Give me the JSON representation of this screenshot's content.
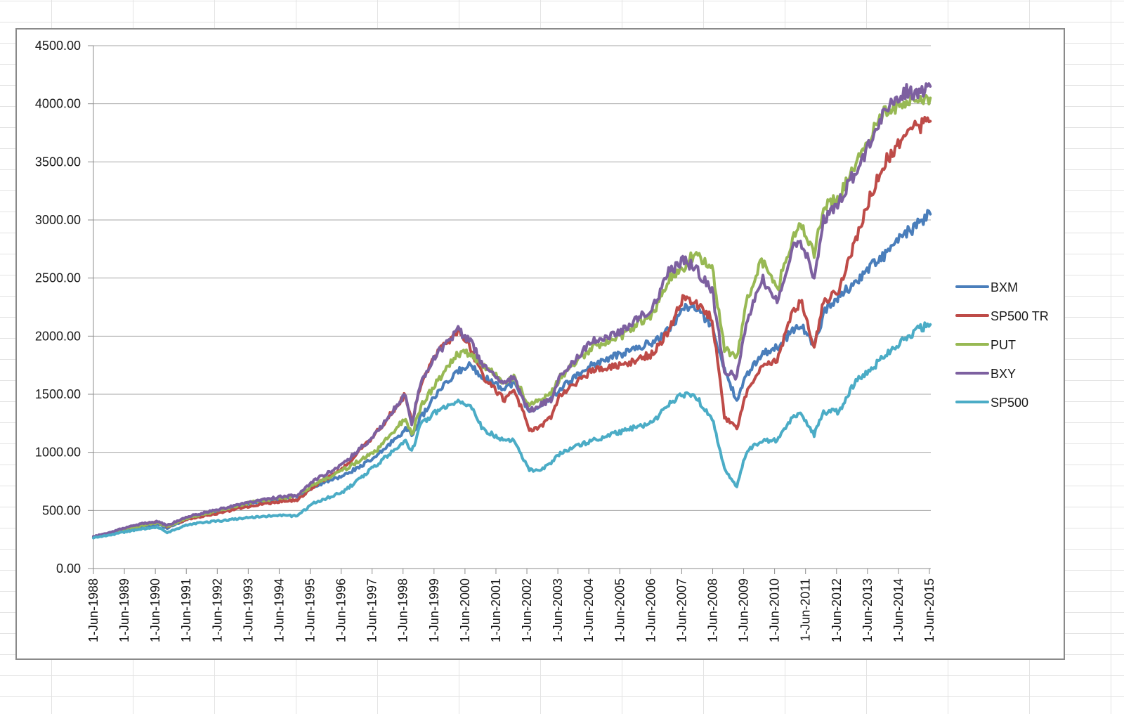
{
  "chart_data": {
    "type": "line",
    "title": "",
    "xlabel": "",
    "ylabel": "",
    "ylim": [
      0,
      4500
    ],
    "y_ticks": [
      "0.00",
      "500.00",
      "1000.00",
      "1500.00",
      "2000.00",
      "2500.00",
      "3000.00",
      "3500.00",
      "4000.00",
      "4500.00"
    ],
    "y_tick_values": [
      0,
      500,
      1000,
      1500,
      2000,
      2500,
      3000,
      3500,
      4000,
      4500
    ],
    "x_tick_labels": [
      "1-Jun-1988",
      "1-Jun-1989",
      "1-Jun-1990",
      "1-Jun-1991",
      "1-Jun-1992",
      "1-Jun-1993",
      "1-Jun-1994",
      "1-Jun-1995",
      "1-Jun-1996",
      "1-Jun-1997",
      "1-Jun-1998",
      "1-Jun-1999",
      "1-Jun-2000",
      "1-Jun-2001",
      "1-Jun-2002",
      "1-Jun-2003",
      "1-Jun-2004",
      "1-Jun-2005",
      "1-Jun-2006",
      "1-Jun-2007",
      "1-Jun-2008",
      "1-Jun-2009",
      "1-Jun-2010",
      "1-Jun-2011",
      "1-Jun-2012",
      "1-Jun-2013",
      "1-Jun-2014",
      "1-Jun-2015"
    ],
    "grid": {
      "horizontal": true,
      "vertical": false
    },
    "legend_position": "right",
    "x": [
      1988.42,
      1989.0,
      1989.5,
      1990.0,
      1990.5,
      1990.8,
      1991.5,
      1992.5,
      1993.5,
      1994.5,
      1995.0,
      1995.5,
      1996.5,
      1997.5,
      1998.5,
      1998.7,
      1999.0,
      1999.5,
      2000.2,
      2000.6,
      2001.0,
      2001.7,
      2002.0,
      2002.5,
      2002.8,
      2003.2,
      2003.5,
      2004.5,
      2005.5,
      2006.5,
      2007.0,
      2007.5,
      2007.8,
      2008.4,
      2008.8,
      2009.2,
      2009.5,
      2010.0,
      2010.5,
      2011.0,
      2011.3,
      2011.7,
      2012.0,
      2012.5,
      2013.0,
      2013.5,
      2014.0,
      2014.5,
      2015.0,
      2015.45
    ],
    "series": [
      {
        "name": "BXM",
        "color": "#4a7ebb",
        "values": [
          270,
          300,
          330,
          360,
          380,
          350,
          430,
          500,
          560,
          600,
          620,
          700,
          800,
          950,
          1200,
          1150,
          1300,
          1500,
          1700,
          1750,
          1650,
          1550,
          1600,
          1350,
          1400,
          1450,
          1550,
          1750,
          1850,
          1950,
          2050,
          2250,
          2250,
          2100,
          1700,
          1450,
          1650,
          1850,
          1900,
          2050,
          2100,
          1900,
          2200,
          2350,
          2450,
          2600,
          2700,
          2850,
          2950,
          3050
        ]
      },
      {
        "name": "SP500 TR",
        "color": "#be4b48",
        "values": [
          270,
          310,
          350,
          380,
          400,
          360,
          430,
          480,
          540,
          580,
          590,
          700,
          870,
          1150,
          1500,
          1250,
          1600,
          1850,
          2050,
          1900,
          1650,
          1450,
          1550,
          1200,
          1200,
          1300,
          1500,
          1700,
          1750,
          1850,
          2050,
          2350,
          2300,
          2150,
          1300,
          1200,
          1500,
          1750,
          1800,
          2200,
          2300,
          1900,
          2300,
          2400,
          2800,
          3200,
          3500,
          3700,
          3800,
          3850
        ]
      },
      {
        "name": "PUT",
        "color": "#98b954",
        "values": [
          270,
          305,
          340,
          370,
          395,
          360,
          440,
          500,
          570,
          610,
          620,
          720,
          850,
          1000,
          1300,
          1150,
          1400,
          1600,
          1850,
          1850,
          1750,
          1600,
          1650,
          1400,
          1450,
          1500,
          1650,
          1900,
          2000,
          2200,
          2500,
          2600,
          2700,
          2600,
          1900,
          1800,
          2300,
          2650,
          2400,
          2850,
          2950,
          2700,
          3100,
          3200,
          3450,
          3700,
          3950,
          4000,
          4050,
          4050
        ]
      },
      {
        "name": "BXY",
        "color": "#7d60a0",
        "values": [
          275,
          315,
          355,
          385,
          405,
          370,
          450,
          510,
          570,
          620,
          630,
          750,
          900,
          1150,
          1500,
          1250,
          1600,
          1850,
          2050,
          1950,
          1750,
          1600,
          1650,
          1350,
          1400,
          1450,
          1650,
          1950,
          2050,
          2250,
          2550,
          2650,
          2600,
          2400,
          1700,
          1650,
          2100,
          2500,
          2300,
          2750,
          2800,
          2500,
          3000,
          3150,
          3400,
          3650,
          3950,
          4100,
          4100,
          4150
        ]
      },
      {
        "name": "SP500",
        "color": "#4bacc6",
        "values": [
          265,
          290,
          320,
          340,
          355,
          310,
          380,
          410,
          440,
          460,
          450,
          560,
          660,
          880,
          1100,
          1000,
          1250,
          1350,
          1450,
          1400,
          1200,
          1100,
          1100,
          850,
          850,
          900,
          1000,
          1100,
          1180,
          1260,
          1420,
          1500,
          1500,
          1300,
          850,
          700,
          1000,
          1100,
          1100,
          1300,
          1330,
          1150,
          1350,
          1350,
          1600,
          1700,
          1850,
          1950,
          2050,
          2100
        ]
      }
    ]
  }
}
